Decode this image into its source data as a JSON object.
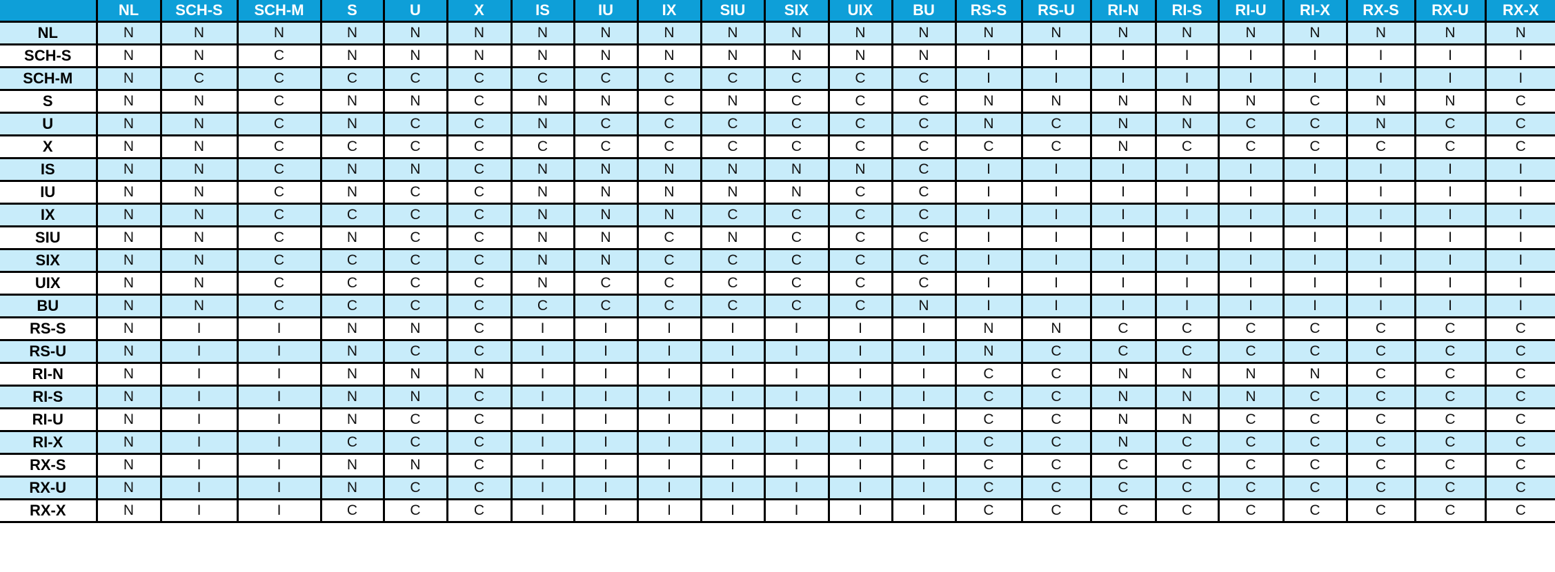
{
  "colors": {
    "header_bg": "#0e9fd8",
    "row_stripe": "#c8ecfa",
    "row_plain": "#ffffff",
    "border": "#000000"
  },
  "table": {
    "corner": "",
    "columns": [
      "NL",
      "SCH-S",
      "SCH-M",
      "S",
      "U",
      "X",
      "IS",
      "IU",
      "IX",
      "SIU",
      "SIX",
      "UIX",
      "BU",
      "RS-S",
      "RS-U",
      "RI-N",
      "RI-S",
      "RI-U",
      "RI-X",
      "RX-S",
      "RX-U",
      "RX-X"
    ],
    "rows": [
      {
        "label": "NL",
        "cells": [
          "N",
          "N",
          "N",
          "N",
          "N",
          "N",
          "N",
          "N",
          "N",
          "N",
          "N",
          "N",
          "N",
          "N",
          "N",
          "N",
          "N",
          "N",
          "N",
          "N",
          "N",
          "N"
        ]
      },
      {
        "label": "SCH-S",
        "cells": [
          "N",
          "N",
          "C",
          "N",
          "N",
          "N",
          "N",
          "N",
          "N",
          "N",
          "N",
          "N",
          "N",
          "I",
          "I",
          "I",
          "I",
          "I",
          "I",
          "I",
          "I",
          "I"
        ]
      },
      {
        "label": "SCH-M",
        "cells": [
          "N",
          "C",
          "C",
          "C",
          "C",
          "C",
          "C",
          "C",
          "C",
          "C",
          "C",
          "C",
          "C",
          "I",
          "I",
          "I",
          "I",
          "I",
          "I",
          "I",
          "I",
          "I"
        ]
      },
      {
        "label": "S",
        "cells": [
          "N",
          "N",
          "C",
          "N",
          "N",
          "C",
          "N",
          "N",
          "C",
          "N",
          "C",
          "C",
          "C",
          "N",
          "N",
          "N",
          "N",
          "N",
          "C",
          "N",
          "N",
          "C"
        ]
      },
      {
        "label": "U",
        "cells": [
          "N",
          "N",
          "C",
          "N",
          "C",
          "C",
          "N",
          "C",
          "C",
          "C",
          "C",
          "C",
          "C",
          "N",
          "C",
          "N",
          "N",
          "C",
          "C",
          "N",
          "C",
          "C"
        ]
      },
      {
        "label": "X",
        "cells": [
          "N",
          "N",
          "C",
          "C",
          "C",
          "C",
          "C",
          "C",
          "C",
          "C",
          "C",
          "C",
          "C",
          "C",
          "C",
          "N",
          "C",
          "C",
          "C",
          "C",
          "C",
          "C"
        ]
      },
      {
        "label": "IS",
        "cells": [
          "N",
          "N",
          "C",
          "N",
          "N",
          "C",
          "N",
          "N",
          "N",
          "N",
          "N",
          "N",
          "C",
          "I",
          "I",
          "I",
          "I",
          "I",
          "I",
          "I",
          "I",
          "I"
        ]
      },
      {
        "label": "IU",
        "cells": [
          "N",
          "N",
          "C",
          "N",
          "C",
          "C",
          "N",
          "N",
          "N",
          "N",
          "N",
          "C",
          "C",
          "I",
          "I",
          "I",
          "I",
          "I",
          "I",
          "I",
          "I",
          "I"
        ]
      },
      {
        "label": "IX",
        "cells": [
          "N",
          "N",
          "C",
          "C",
          "C",
          "C",
          "N",
          "N",
          "N",
          "C",
          "C",
          "C",
          "C",
          "I",
          "I",
          "I",
          "I",
          "I",
          "I",
          "I",
          "I",
          "I"
        ]
      },
      {
        "label": "SIU",
        "cells": [
          "N",
          "N",
          "C",
          "N",
          "C",
          "C",
          "N",
          "N",
          "C",
          "N",
          "C",
          "C",
          "C",
          "I",
          "I",
          "I",
          "I",
          "I",
          "I",
          "I",
          "I",
          "I"
        ]
      },
      {
        "label": "SIX",
        "cells": [
          "N",
          "N",
          "C",
          "C",
          "C",
          "C",
          "N",
          "N",
          "C",
          "C",
          "C",
          "C",
          "C",
          "I",
          "I",
          "I",
          "I",
          "I",
          "I",
          "I",
          "I",
          "I"
        ]
      },
      {
        "label": "UIX",
        "cells": [
          "N",
          "N",
          "C",
          "C",
          "C",
          "C",
          "N",
          "C",
          "C",
          "C",
          "C",
          "C",
          "C",
          "I",
          "I",
          "I",
          "I",
          "I",
          "I",
          "I",
          "I",
          "I"
        ]
      },
      {
        "label": "BU",
        "cells": [
          "N",
          "N",
          "C",
          "C",
          "C",
          "C",
          "C",
          "C",
          "C",
          "C",
          "C",
          "C",
          "N",
          "I",
          "I",
          "I",
          "I",
          "I",
          "I",
          "I",
          "I",
          "I"
        ]
      },
      {
        "label": "RS-S",
        "cells": [
          "N",
          "I",
          "I",
          "N",
          "N",
          "C",
          "I",
          "I",
          "I",
          "I",
          "I",
          "I",
          "I",
          "N",
          "N",
          "C",
          "C",
          "C",
          "C",
          "C",
          "C",
          "C"
        ]
      },
      {
        "label": "RS-U",
        "cells": [
          "N",
          "I",
          "I",
          "N",
          "C",
          "C",
          "I",
          "I",
          "I",
          "I",
          "I",
          "I",
          "I",
          "N",
          "C",
          "C",
          "C",
          "C",
          "C",
          "C",
          "C",
          "C"
        ]
      },
      {
        "label": "RI-N",
        "cells": [
          "N",
          "I",
          "I",
          "N",
          "N",
          "N",
          "I",
          "I",
          "I",
          "I",
          "I",
          "I",
          "I",
          "C",
          "C",
          "N",
          "N",
          "N",
          "N",
          "C",
          "C",
          "C"
        ]
      },
      {
        "label": "RI-S",
        "cells": [
          "N",
          "I",
          "I",
          "N",
          "N",
          "C",
          "I",
          "I",
          "I",
          "I",
          "I",
          "I",
          "I",
          "C",
          "C",
          "N",
          "N",
          "N",
          "C",
          "C",
          "C",
          "C"
        ]
      },
      {
        "label": "RI-U",
        "cells": [
          "N",
          "I",
          "I",
          "N",
          "C",
          "C",
          "I",
          "I",
          "I",
          "I",
          "I",
          "I",
          "I",
          "C",
          "C",
          "N",
          "N",
          "C",
          "C",
          "C",
          "C",
          "C"
        ]
      },
      {
        "label": "RI-X",
        "cells": [
          "N",
          "I",
          "I",
          "C",
          "C",
          "C",
          "I",
          "I",
          "I",
          "I",
          "I",
          "I",
          "I",
          "C",
          "C",
          "N",
          "C",
          "C",
          "C",
          "C",
          "C",
          "C"
        ]
      },
      {
        "label": "RX-S",
        "cells": [
          "N",
          "I",
          "I",
          "N",
          "N",
          "C",
          "I",
          "I",
          "I",
          "I",
          "I",
          "I",
          "I",
          "C",
          "C",
          "C",
          "C",
          "C",
          "C",
          "C",
          "C",
          "C"
        ]
      },
      {
        "label": "RX-U",
        "cells": [
          "N",
          "I",
          "I",
          "N",
          "C",
          "C",
          "I",
          "I",
          "I",
          "I",
          "I",
          "I",
          "I",
          "C",
          "C",
          "C",
          "C",
          "C",
          "C",
          "C",
          "C",
          "C"
        ]
      },
      {
        "label": "RX-X",
        "cells": [
          "N",
          "I",
          "I",
          "C",
          "C",
          "C",
          "I",
          "I",
          "I",
          "I",
          "I",
          "I",
          "I",
          "C",
          "C",
          "C",
          "C",
          "C",
          "C",
          "C",
          "C",
          "C"
        ]
      }
    ]
  }
}
